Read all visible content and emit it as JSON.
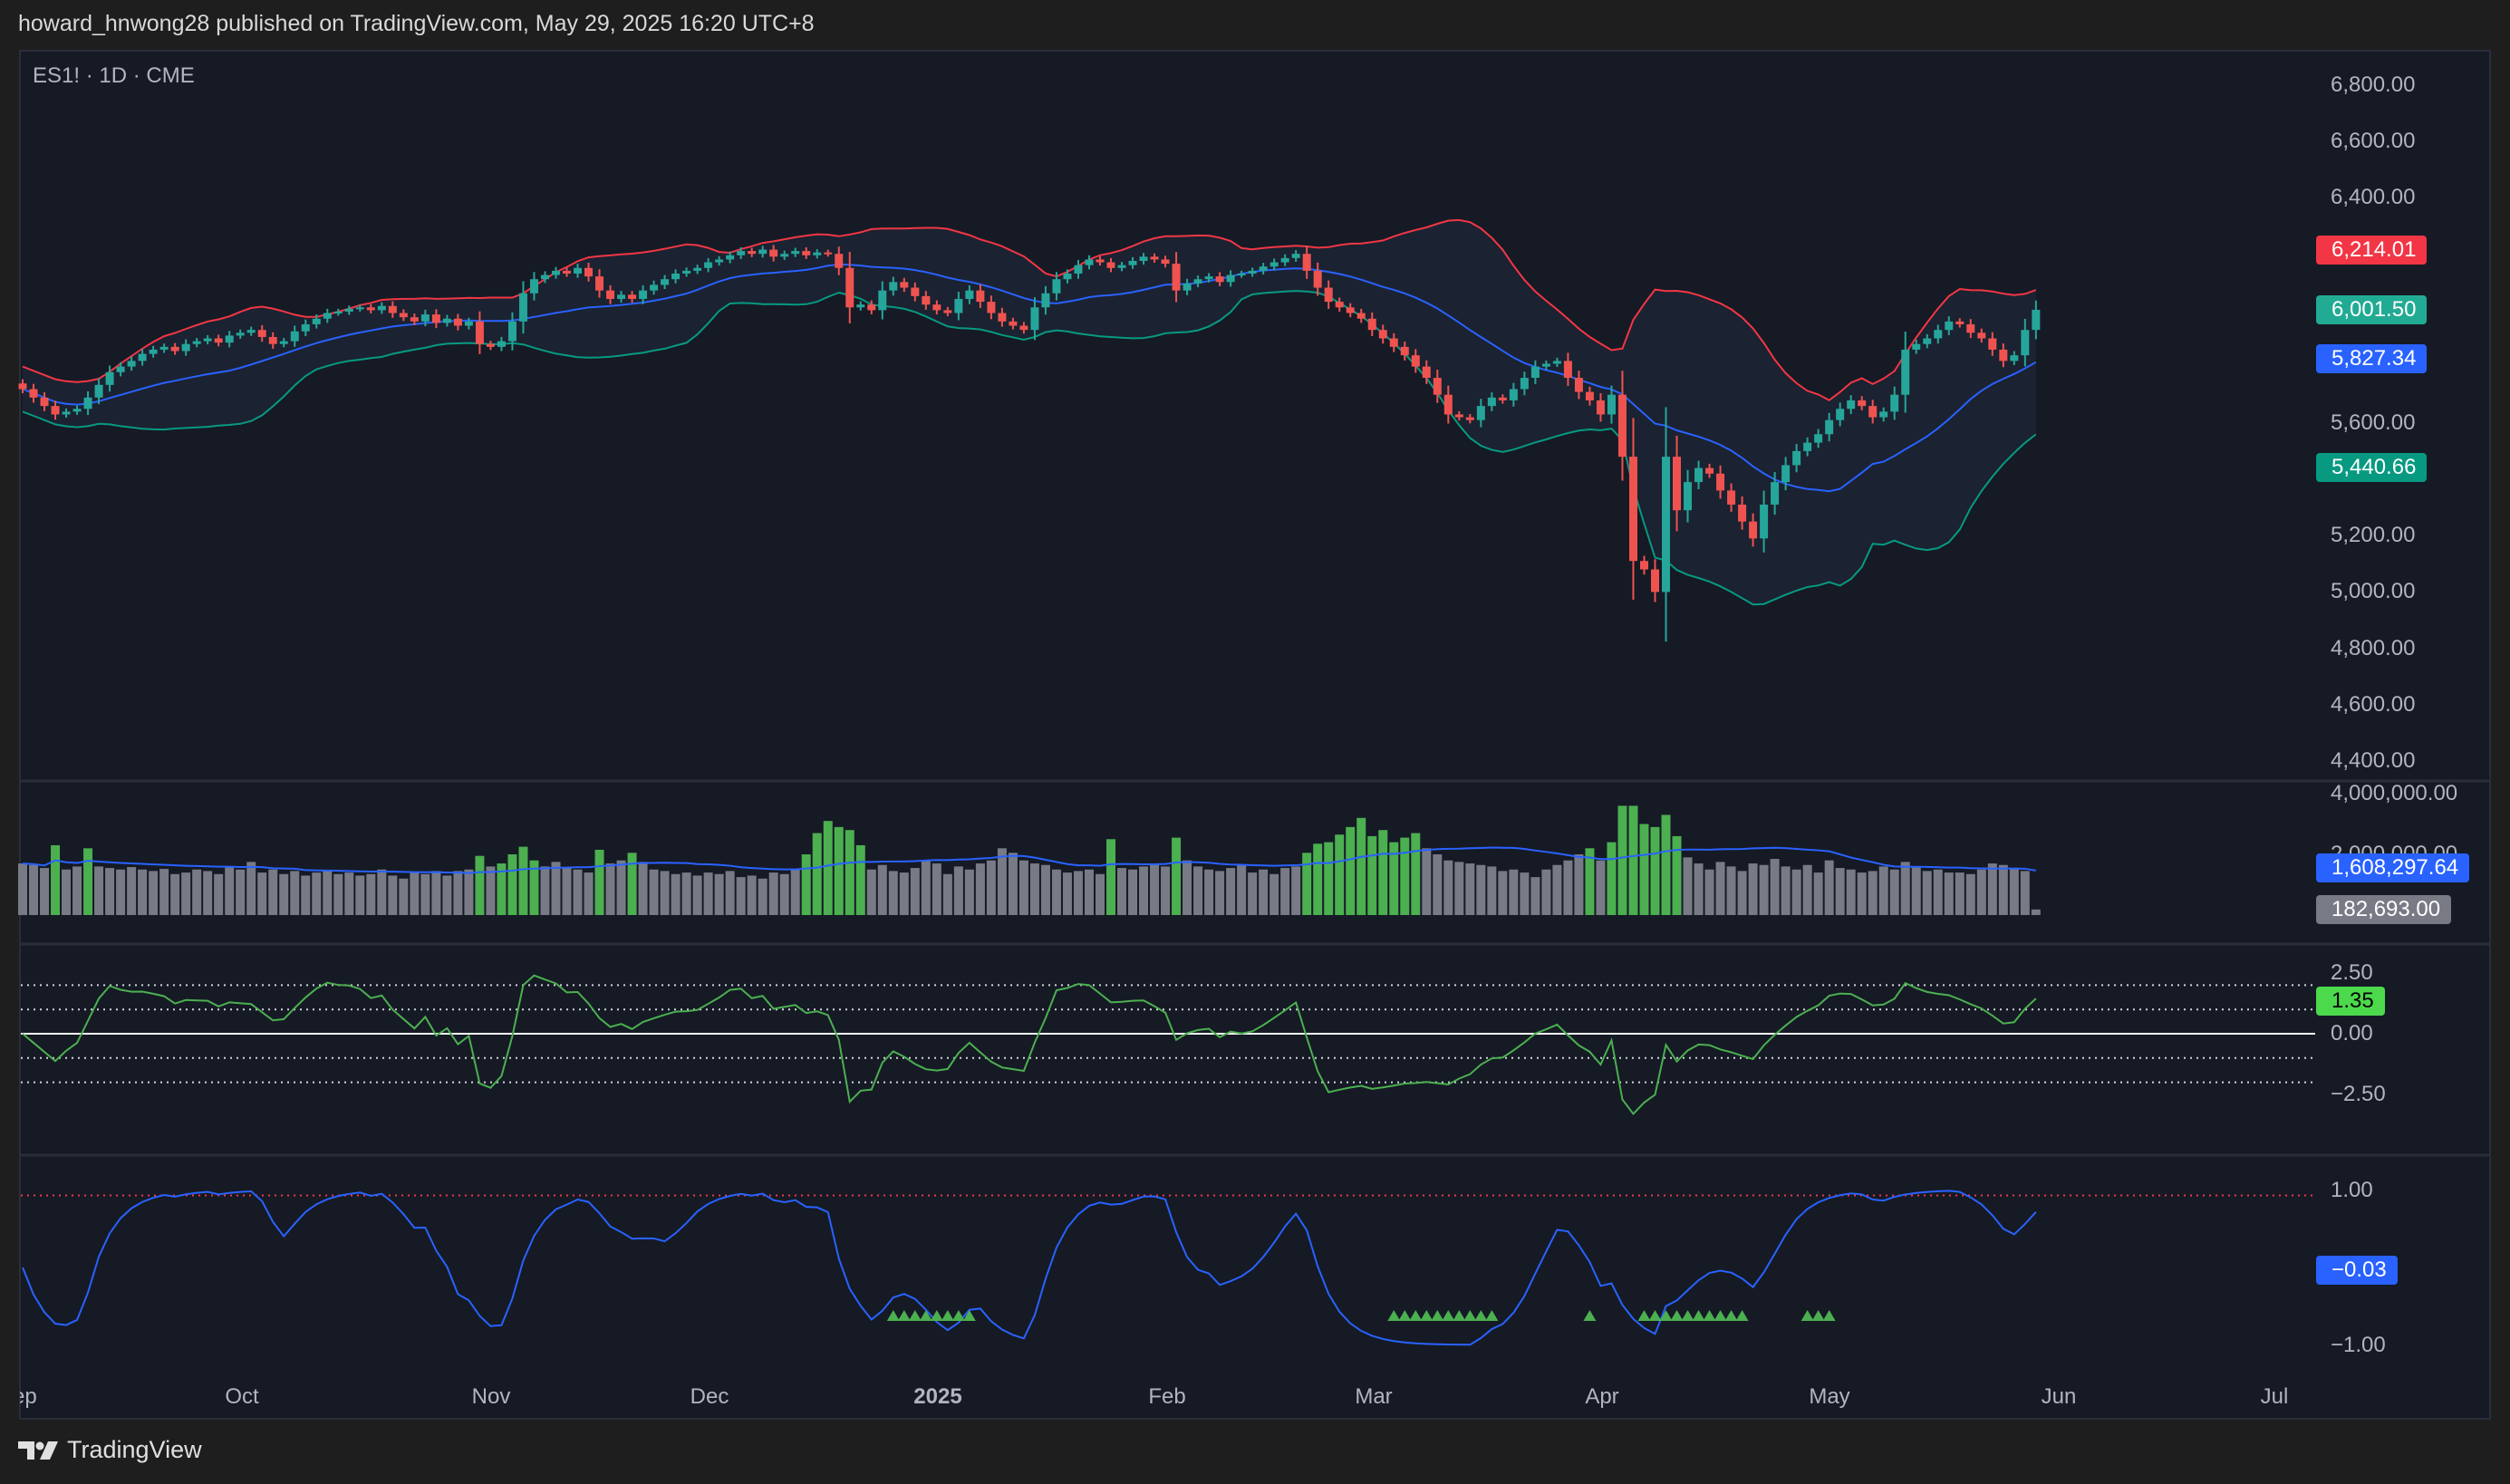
{
  "header": {
    "published_by": "howard_hnwong28 published on TradingView.com, May 29, 2025 16:20 UTC+8"
  },
  "symbol_info": "ES1! · 1D · CME",
  "footer": {
    "brand": "TradingView",
    "logo_icon": "tradingview-logo-icon"
  },
  "colors": {
    "up": "#26a69a",
    "down": "#ef5350",
    "bb_upper": "#f23645",
    "bb_basis": "#2962ff",
    "bb_lower": "#089981",
    "volume_high": "#4caf50",
    "volume_normal": "#787b86",
    "volume_ma": "#2962ff",
    "osc_line": "#4caf50",
    "osc2_line": "#2962ff",
    "signal": "#4caf50"
  },
  "chart_data": {
    "type": "candlestick",
    "x_ticks": [
      "Sep",
      "Oct",
      "Nov",
      "Dec",
      "2025",
      "Feb",
      "Mar",
      "Apr",
      "May",
      "Jun",
      "Jul"
    ],
    "price_axis": {
      "ticks": [
        "6,800.00",
        "6,600.00",
        "6,400.00",
        "5,600.00",
        "5,200.00",
        "5,000.00",
        "4,800.00",
        "4,600.00",
        "4,400.00"
      ],
      "tick_values": [
        6800,
        6600,
        6400,
        5600,
        5200,
        5000,
        4800,
        4600,
        4400
      ],
      "range": [
        4400,
        6800
      ]
    },
    "price_tags": [
      {
        "label": "6,214.01",
        "value": 6214.01,
        "color": "#f23645"
      },
      {
        "label": "6,001.50",
        "value": 6001.5,
        "color": "#22ab94"
      },
      {
        "label": "5,827.34",
        "value": 5827.34,
        "color": "#2962ff"
      },
      {
        "label": "5,440.66",
        "value": 5440.66,
        "color": "#089981"
      }
    ],
    "closes": [
      5720,
      5690,
      5660,
      5630,
      5640,
      5650,
      5690,
      5735,
      5780,
      5800,
      5820,
      5845,
      5860,
      5870,
      5855,
      5880,
      5890,
      5900,
      5885,
      5910,
      5920,
      5930,
      5905,
      5880,
      5890,
      5925,
      5950,
      5970,
      5990,
      5995,
      6005,
      6010,
      6000,
      6015,
      5990,
      5975,
      5960,
      5985,
      5955,
      5970,
      5945,
      5960,
      5880,
      5870,
      5890,
      5960,
      6060,
      6110,
      6125,
      6140,
      6130,
      6150,
      6120,
      6070,
      6040,
      6055,
      6040,
      6070,
      6090,
      6110,
      6130,
      6140,
      6150,
      6170,
      6180,
      6195,
      6210,
      6200,
      6215,
      6190,
      6200,
      6210,
      6195,
      6205,
      6200,
      6150,
      6010,
      6020,
      6000,
      6070,
      6100,
      6080,
      6050,
      6020,
      6000,
      5990,
      6040,
      6070,
      6030,
      5990,
      5960,
      5945,
      5930,
      6010,
      6060,
      6110,
      6130,
      6160,
      6180,
      6170,
      6150,
      6160,
      6175,
      6190,
      6180,
      6165,
      6070,
      6095,
      6110,
      6120,
      6100,
      6125,
      6130,
      6140,
      6155,
      6170,
      6185,
      6200,
      6140,
      6080,
      6030,
      6010,
      5990,
      5970,
      5930,
      5900,
      5870,
      5840,
      5800,
      5760,
      5700,
      5630,
      5620,
      5610,
      5660,
      5690,
      5680,
      5720,
      5760,
      5800,
      5810,
      5820,
      5760,
      5710,
      5680,
      5630,
      5700,
      5480,
      5110,
      5080,
      5000,
      5480,
      5290,
      5390,
      5440,
      5420,
      5360,
      5310,
      5250,
      5190,
      5310,
      5390,
      5450,
      5500,
      5530,
      5560,
      5610,
      5650,
      5680,
      5660,
      5620,
      5640,
      5700,
      5860,
      5880,
      5900,
      5930,
      5960,
      5950,
      5920,
      5900,
      5860,
      5820,
      5840,
      5930,
      6001.5
    ],
    "bollinger": {
      "length": 20,
      "mult": 2
    },
    "volume": {
      "axis_ticks": [
        "4,000,000.00",
        "2,000,000.00"
      ],
      "tick_values": [
        4000000,
        2000000
      ],
      "values": [
        1700000,
        1650000,
        1550000,
        2300000,
        1500000,
        1600000,
        2200000,
        1600000,
        1550000,
        1500000,
        1580000,
        1500000,
        1450000,
        1520000,
        1350000,
        1400000,
        1500000,
        1450000,
        1350000,
        1600000,
        1500000,
        1750000,
        1400000,
        1500000,
        1350000,
        1450000,
        1300000,
        1400000,
        1450000,
        1350000,
        1400000,
        1300000,
        1350000,
        1500000,
        1300000,
        1200000,
        1400000,
        1350000,
        1450000,
        1300000,
        1450000,
        1500000,
        1950000,
        1600000,
        1700000,
        2000000,
        2250000,
        1800000,
        1600000,
        1750000,
        1550000,
        1500000,
        1400000,
        2150000,
        1700000,
        1800000,
        2050000,
        1750000,
        1500000,
        1450000,
        1350000,
        1400000,
        1300000,
        1400000,
        1350000,
        1450000,
        1250000,
        1300000,
        1200000,
        1400000,
        1350000,
        1500000,
        2000000,
        2700000,
        3100000,
        2900000,
        2800000,
        2300000,
        1500000,
        1650000,
        1450000,
        1400000,
        1550000,
        1800000,
        1700000,
        1350000,
        1600000,
        1500000,
        1700000,
        1800000,
        2200000,
        2050000,
        1800000,
        1700000,
        1650000,
        1500000,
        1400000,
        1450000,
        1500000,
        1350000,
        2500000,
        1550000,
        1500000,
        1600000,
        1700000,
        1600000,
        2550000,
        1800000,
        1600000,
        1500000,
        1450000,
        1550000,
        1650000,
        1400000,
        1500000,
        1350000,
        1550000,
        1600000,
        2050000,
        2350000,
        2400000,
        2650000,
        2900000,
        3200000,
        2600000,
        2800000,
        2400000,
        2550000,
        2700000,
        2200000,
        2000000,
        1800000,
        1750000,
        1700000,
        1650000,
        1600000,
        1450000,
        1500000,
        1400000,
        1250000,
        1500000,
        1650000,
        1800000,
        2000000,
        2200000,
        1800000,
        2400000,
        3600000,
        3600000,
        3000000,
        2900000,
        3300000,
        2600000,
        1900000,
        1700000,
        1500000,
        1750000,
        1600000,
        1450000,
        1700000,
        1650000,
        1850000,
        1600000,
        1500000,
        1650000,
        1400000,
        1800000,
        1550000,
        1500000,
        1400000,
        1450000,
        1600000,
        1500000,
        1750000,
        1600000,
        1450000,
        1500000,
        1400000,
        1400000,
        1350000,
        1500000,
        1700000,
        1650000,
        1550000,
        1450000,
        182693
      ],
      "ma_tag": {
        "label": "1,608,297.64",
        "color": "#2962ff"
      },
      "last_tag": {
        "label": "182,693.00",
        "color": "#787b86"
      }
    },
    "oscillator": {
      "axis_ticks": [
        "2.50",
        "0.00",
        "−2.50"
      ],
      "tick_values": [
        2.5,
        0,
        -2.5
      ],
      "levels": [
        2,
        1,
        -1,
        -2
      ],
      "last_tag": {
        "label": "1.35",
        "color": "#4cd94c"
      }
    },
    "oscillator2": {
      "axis_ticks": [
        "1.00",
        "−1.00"
      ],
      "tick_values": [
        1,
        -1
      ],
      "level": 1,
      "last_tag": {
        "label": "−0.03",
        "color": "#2962ff"
      },
      "signal_bars": [
        80,
        81,
        82,
        83,
        84,
        85,
        86,
        87,
        126,
        127,
        128,
        129,
        130,
        131,
        132,
        133,
        134,
        135,
        144,
        149,
        150,
        151,
        152,
        153,
        154,
        155,
        156,
        157,
        158,
        164,
        165,
        166
      ]
    }
  }
}
